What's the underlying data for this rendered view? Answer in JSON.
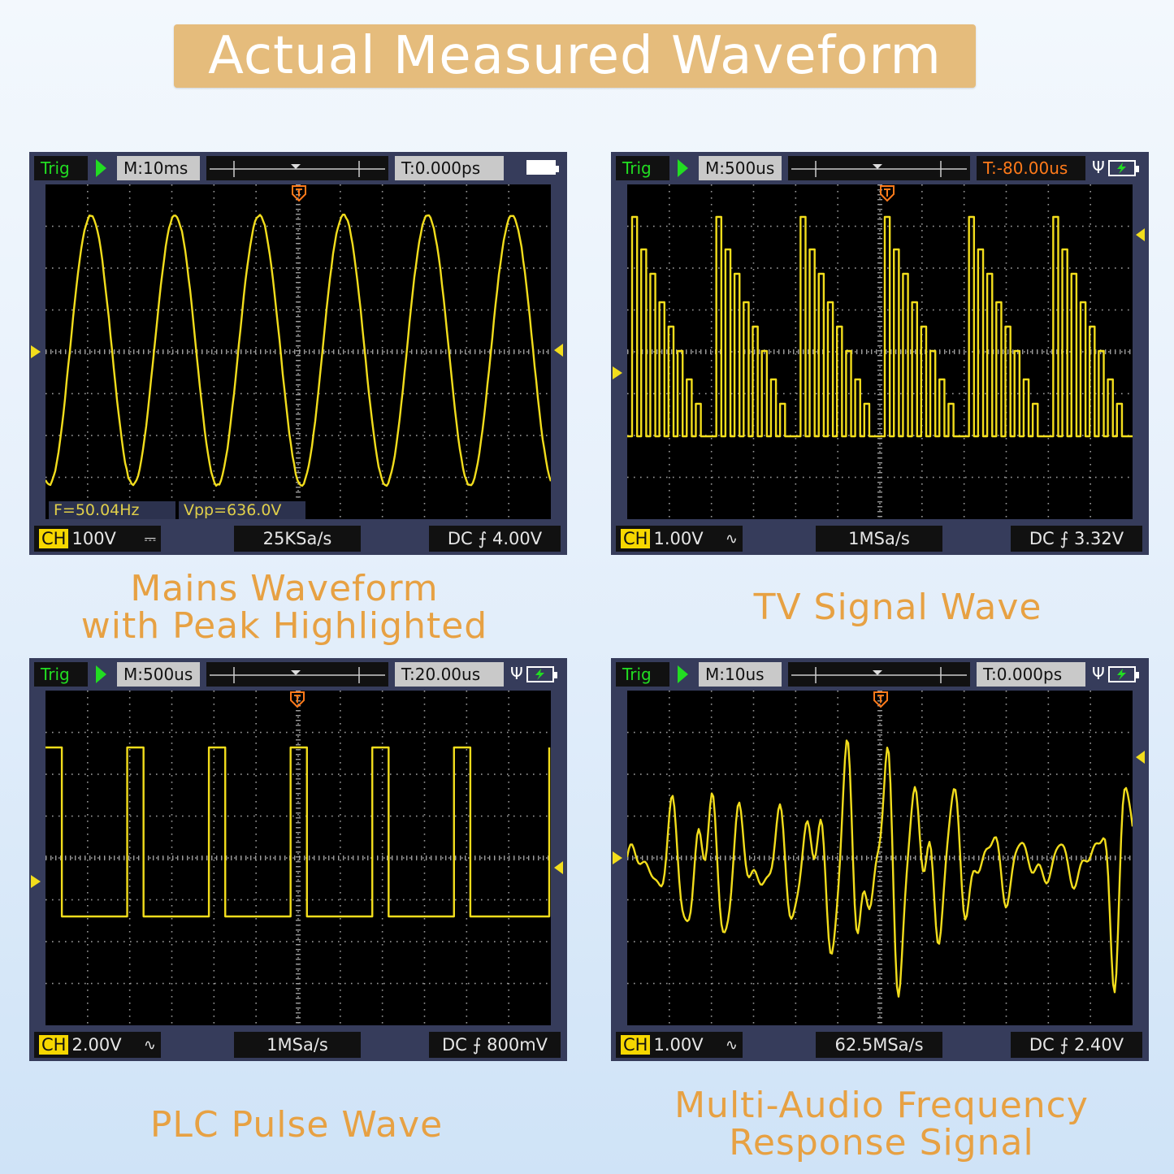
{
  "banner": {
    "title": "Actual Measured Waveform"
  },
  "panels": [
    {
      "trig": "Trig",
      "timebase": "M:10ms",
      "trigger_time": "T:0.000ps",
      "trigger_time_color": "#111111",
      "ch": "CH",
      "volts": "100V",
      "coupling_symbol": "⎓",
      "sample_rate": "25KSa/s",
      "trigger_info": "DC ⨍ 4.00V",
      "measurements": {
        "freq": "F=50.04Hz",
        "vpp": "Vpp=636.0V"
      },
      "caption_lines": [
        "Mains Waveform",
        "with Peak Highlighted"
      ],
      "status_icons": [
        "battery-icon"
      ],
      "waveform": {
        "type": "sine",
        "cycles": 6
      }
    },
    {
      "trig": "Trig",
      "timebase": "M:500us",
      "trigger_time": "T:-80.00us",
      "trigger_time_color": "#ff7a1a",
      "ch": "CH",
      "volts": "1.00V",
      "coupling_symbol": "∿",
      "sample_rate": "1MSa/s",
      "trigger_info": "DC ⨍ 3.32V",
      "caption_lines": [
        "TV Signal Wave"
      ],
      "status_icons": [
        "usb-icon",
        "battery-charging-icon"
      ],
      "waveform": {
        "type": "staircase",
        "groups": 6,
        "steps_per_group": 8
      }
    },
    {
      "trig": "Trig",
      "timebase": "M:500us",
      "trigger_time": "T:20.00us",
      "trigger_time_color": "#111111",
      "ch": "CH",
      "volts": "2.00V",
      "coupling_symbol": "∿",
      "sample_rate": "1MSa/s",
      "trigger_info": "DC ⨍ 800mV",
      "caption_lines": [
        "PLC Pulse Wave"
      ],
      "status_icons": [
        "usb-icon",
        "battery-charging-icon"
      ],
      "waveform": {
        "type": "pulse",
        "pulses": 6,
        "duty": 0.2
      }
    },
    {
      "trig": "Trig",
      "timebase": "M:10us",
      "trigger_time": "T:0.000ps",
      "trigger_time_color": "#111111",
      "ch": "CH",
      "volts": "1.00V",
      "coupling_symbol": "∿",
      "sample_rate": "62.5MSa/s",
      "trigger_info": "DC ⨍ 2.40V",
      "caption_lines": [
        "Multi-Audio Frequency",
        "Response Signal"
      ],
      "status_icons": [
        "usb-icon",
        "battery-charging-icon"
      ],
      "waveform": {
        "type": "audio"
      }
    }
  ],
  "colors": {
    "trace": "#f2dd1c",
    "grid": "#9a9a9a",
    "caption": "#e7a143",
    "banner": "#e5bc7c"
  }
}
